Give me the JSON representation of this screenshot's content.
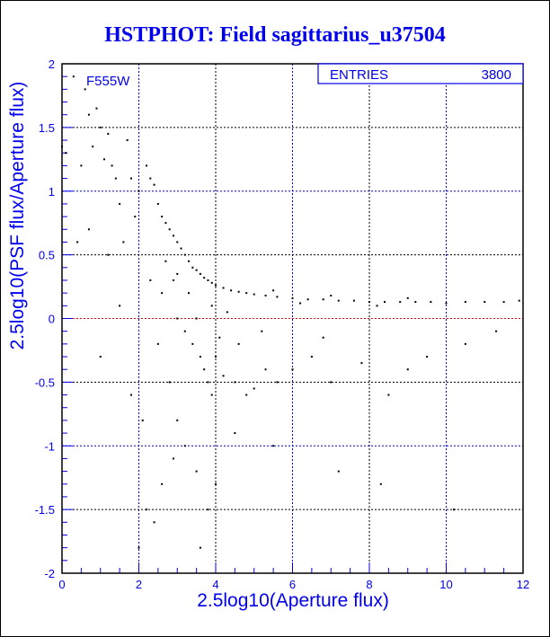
{
  "chart_data": {
    "type": "scatter",
    "title": "HSTPHOT: Field sagittarius_u37504",
    "xlabel": "2.5log10(Aperture flux)",
    "ylabel": "2.5log10(PSF flux/Aperture flux)",
    "xlim": [
      0,
      12
    ],
    "ylim": [
      -2,
      2
    ],
    "xticks": [
      "0",
      "2",
      "4",
      "6",
      "8",
      "10",
      "12"
    ],
    "yticks": [
      "-2",
      "-1.5",
      "-1",
      "-0.5",
      "0",
      "0.5",
      "1",
      "1.5",
      "2"
    ],
    "grid": true,
    "annotation": "F555W",
    "stats": {
      "label": "ENTRIES",
      "value": "3800"
    },
    "colors": {
      "axis": "#0000ee",
      "points": "#000000",
      "zero_line": "#ff0000"
    },
    "points": [
      [
        0.3,
        1.9
      ],
      [
        0.6,
        1.8
      ],
      [
        0.7,
        1.6
      ],
      [
        0.9,
        1.65
      ],
      [
        1.0,
        1.5
      ],
      [
        1.2,
        1.45
      ],
      [
        1.3,
        1.2
      ],
      [
        1.4,
        1.1
      ],
      [
        0.8,
        1.35
      ],
      [
        1.1,
        1.25
      ],
      [
        1.7,
        1.4
      ],
      [
        1.8,
        1.1
      ],
      [
        2.0,
        1.0
      ],
      [
        1.5,
        0.9
      ],
      [
        1.9,
        0.8
      ],
      [
        0.5,
        1.2
      ],
      [
        0.7,
        0.7
      ],
      [
        0.4,
        0.6
      ],
      [
        1.2,
        0.5
      ],
      [
        1.6,
        0.6
      ],
      [
        0.1,
        1.3
      ],
      [
        0.0,
        1.35
      ],
      [
        2.2,
        1.2
      ],
      [
        2.3,
        1.1
      ],
      [
        2.4,
        1.05
      ],
      [
        2.5,
        0.9
      ],
      [
        2.6,
        0.8
      ],
      [
        2.7,
        0.75
      ],
      [
        2.8,
        0.7
      ],
      [
        2.9,
        0.65
      ],
      [
        3.0,
        0.6
      ],
      [
        3.1,
        0.55
      ],
      [
        3.2,
        0.5
      ],
      [
        3.3,
        0.45
      ],
      [
        3.4,
        0.4
      ],
      [
        3.5,
        0.38
      ],
      [
        3.6,
        0.35
      ],
      [
        3.7,
        0.32
      ],
      [
        3.8,
        0.3
      ],
      [
        3.9,
        0.28
      ],
      [
        4.0,
        0.26
      ],
      [
        4.2,
        0.24
      ],
      [
        4.4,
        0.22
      ],
      [
        4.6,
        0.21
      ],
      [
        4.8,
        0.2
      ],
      [
        5.0,
        0.19
      ],
      [
        5.3,
        0.18
      ],
      [
        5.6,
        0.17
      ],
      [
        6.0,
        0.16
      ],
      [
        6.4,
        0.15
      ],
      [
        6.8,
        0.15
      ],
      [
        7.2,
        0.14
      ],
      [
        7.6,
        0.14
      ],
      [
        8.0,
        0.13
      ],
      [
        8.4,
        0.13
      ],
      [
        8.8,
        0.13
      ],
      [
        9.2,
        0.13
      ],
      [
        9.6,
        0.13
      ],
      [
        10.0,
        0.12
      ],
      [
        10.5,
        0.13
      ],
      [
        11.0,
        0.13
      ],
      [
        11.5,
        0.13
      ],
      [
        11.9,
        0.14
      ],
      [
        5.5,
        0.22
      ],
      [
        6.2,
        0.12
      ],
      [
        7.0,
        0.18
      ],
      [
        8.2,
        0.1
      ],
      [
        9.0,
        0.16
      ],
      [
        3.0,
        0.0
      ],
      [
        3.2,
        -0.1
      ],
      [
        3.4,
        -0.2
      ],
      [
        3.6,
        -0.3
      ],
      [
        3.7,
        -0.4
      ],
      [
        3.8,
        -0.5
      ],
      [
        3.9,
        -0.6
      ],
      [
        4.0,
        -0.3
      ],
      [
        4.2,
        -0.45
      ],
      [
        4.5,
        -0.5
      ],
      [
        4.8,
        -0.6
      ],
      [
        5.0,
        -0.55
      ],
      [
        5.3,
        -0.4
      ],
      [
        5.6,
        -0.5
      ],
      [
        6.0,
        -0.4
      ],
      [
        6.5,
        -0.3
      ],
      [
        7.0,
        -0.5
      ],
      [
        7.8,
        -0.35
      ],
      [
        8.5,
        -0.6
      ],
      [
        9.5,
        -0.3
      ],
      [
        10.5,
        -0.2
      ],
      [
        2.5,
        -0.2
      ],
      [
        2.8,
        -0.5
      ],
      [
        3.0,
        -0.8
      ],
      [
        3.2,
        -1.0
      ],
      [
        3.5,
        -1.2
      ],
      [
        3.8,
        -1.5
      ],
      [
        2.6,
        -1.3
      ],
      [
        2.4,
        -1.6
      ],
      [
        3.6,
        -1.8
      ],
      [
        4.0,
        -1.3
      ],
      [
        2.0,
        -1.8
      ],
      [
        2.2,
        -1.5
      ],
      [
        2.9,
        -1.1
      ],
      [
        4.5,
        -0.9
      ],
      [
        5.5,
        -1.0
      ],
      [
        7.2,
        -1.2
      ],
      [
        8.3,
        -1.3
      ],
      [
        10.2,
        -1.5
      ],
      [
        11.3,
        -0.1
      ],
      [
        1.0,
        -0.3
      ],
      [
        1.5,
        0.1
      ],
      [
        1.8,
        -0.6
      ],
      [
        2.1,
        -0.8
      ],
      [
        2.3,
        0.3
      ],
      [
        2.6,
        0.2
      ],
      [
        2.9,
        0.3
      ],
      [
        3.3,
        0.2
      ],
      [
        3.5,
        0.0
      ],
      [
        3.9,
        0.1
      ],
      [
        4.3,
        0.05
      ],
      [
        4.1,
        -0.15
      ],
      [
        3.0,
        0.35
      ],
      [
        2.7,
        0.45
      ],
      [
        4.6,
        -0.2
      ],
      [
        5.2,
        -0.1
      ],
      [
        6.8,
        -0.15
      ],
      [
        9.0,
        -0.4
      ]
    ]
  }
}
